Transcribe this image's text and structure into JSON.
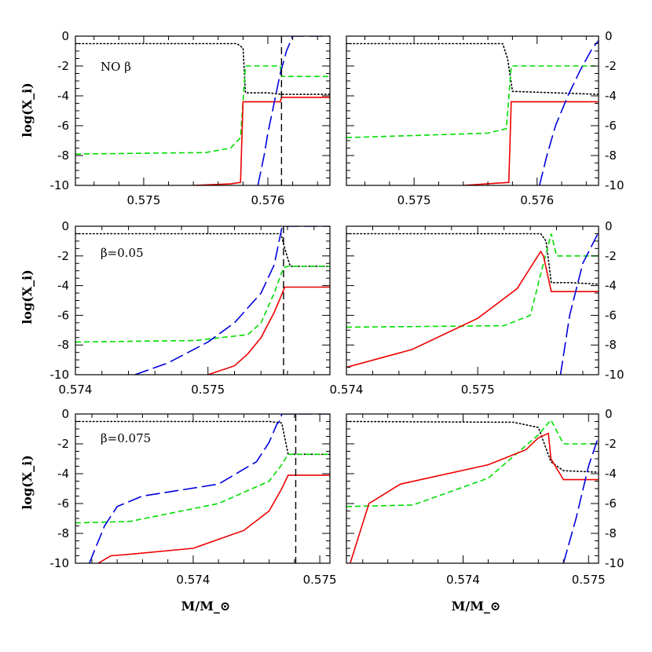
{
  "colors": {
    "H": "#000000",
    "He": "#0000dd",
    "C": "#00dd00",
    "O": "#ee0000",
    "interface": "#000000"
  },
  "y_axis_label": "log(X_i)",
  "x_axis_label": "M/M_⊙",
  "chart_data": [
    {
      "type": "line",
      "panel": "top-left",
      "annotation": "NO β",
      "xlim": [
        0.57445,
        0.5765
      ],
      "ylim": [
        -10,
        0
      ],
      "xticks": [
        0.575,
        0.576
      ],
      "xtick_labels": [
        "0.575",
        "0.576"
      ],
      "yticks": [
        0,
        -2,
        -4,
        -6,
        -8,
        -10
      ],
      "ytick_labels": [
        "0",
        "-2",
        "-4",
        "-6",
        "-8",
        "-10"
      ],
      "ytick_side": "left",
      "vline": 0.57611,
      "series": [
        {
          "key": "H",
          "style": "dotted",
          "x": [
            0.57445,
            0.57575,
            0.5758,
            0.57582,
            0.576,
            0.57611,
            0.5765
          ],
          "y": [
            -0.5,
            -0.5,
            -0.8,
            -3.8,
            -3.8,
            -3.9,
            -3.9
          ]
        },
        {
          "key": "C",
          "style": "dashed",
          "x": [
            0.57445,
            0.5755,
            0.5757,
            0.57578,
            0.57582,
            0.5761,
            0.57611,
            0.5765
          ],
          "y": [
            -7.9,
            -7.8,
            -7.5,
            -6.8,
            -2.0,
            -2.0,
            -2.7,
            -2.7
          ]
        },
        {
          "key": "O",
          "style": "solid",
          "x": [
            0.5754,
            0.5757,
            0.57578,
            0.5758,
            0.5761,
            0.57611,
            0.5765
          ],
          "y": [
            -10,
            -9.9,
            -9.8,
            -4.4,
            -4.4,
            -4.1,
            -4.1
          ]
        },
        {
          "key": "He",
          "style": "longdash",
          "x": [
            0.57592,
            0.57597,
            0.576,
            0.57605,
            0.5761,
            0.57615,
            0.5762,
            0.5765
          ],
          "y": [
            -10,
            -8.0,
            -6.5,
            -4.5,
            -2.5,
            -1.0,
            0,
            0
          ]
        }
      ]
    },
    {
      "type": "line",
      "panel": "top-right",
      "xlim": [
        0.57445,
        0.5765
      ],
      "ylim": [
        -10,
        0
      ],
      "xticks": [
        0.575,
        0.576
      ],
      "xtick_labels": [
        "0.575",
        "0.576"
      ],
      "yticks": [
        0,
        -2,
        -4,
        -6,
        -8,
        -10
      ],
      "ytick_labels": [
        "0",
        "-2",
        "-4",
        "-6",
        "-8",
        "-10"
      ],
      "ytick_side": "right",
      "series": [
        {
          "key": "H",
          "style": "dotted",
          "x": [
            0.57445,
            0.57572,
            0.57576,
            0.5758,
            0.5765
          ],
          "y": [
            -0.5,
            -0.5,
            -1.5,
            -3.7,
            -3.9
          ]
        },
        {
          "key": "C",
          "style": "dashed",
          "x": [
            0.57445,
            0.5756,
            0.57575,
            0.57579,
            0.5765
          ],
          "y": [
            -6.8,
            -6.5,
            -6.2,
            -2.0,
            -2.0
          ]
        },
        {
          "key": "O",
          "style": "solid",
          "x": [
            0.5754,
            0.57577,
            0.57579,
            0.5765
          ],
          "y": [
            -10,
            -9.8,
            -4.4,
            -4.4
          ]
        },
        {
          "key": "He",
          "style": "longdash",
          "x": [
            0.57602,
            0.57608,
            0.57615,
            0.57625,
            0.57635,
            0.57645,
            0.5765
          ],
          "y": [
            -10,
            -8.0,
            -6.0,
            -4.0,
            -2.3,
            -0.8,
            -0.3
          ]
        }
      ]
    },
    {
      "type": "line",
      "panel": "middle-left",
      "annotation": "β=0.05",
      "xlim": [
        0.574,
        0.57592
      ],
      "ylim": [
        -10,
        0
      ],
      "xticks": [
        0.574,
        0.575
      ],
      "xtick_labels": [
        "0.574",
        "0.575"
      ],
      "yticks": [
        0,
        -2,
        -4,
        -6,
        -8,
        -10
      ],
      "ytick_labels": [
        "0",
        "-2",
        "-4",
        "-6",
        "-8",
        "-10"
      ],
      "ytick_side": "left",
      "vline": 0.57557,
      "series": [
        {
          "key": "H",
          "style": "dotted",
          "x": [
            0.574,
            0.57555,
            0.57558,
            0.57562,
            0.57592
          ],
          "y": [
            -0.5,
            -0.5,
            -1.5,
            -2.7,
            -2.7
          ]
        },
        {
          "key": "C",
          "style": "dashed",
          "x": [
            0.574,
            0.5749,
            0.5753,
            0.5754,
            0.5755,
            0.57557,
            0.5756,
            0.57592
          ],
          "y": [
            -7.8,
            -7.7,
            -7.3,
            -6.5,
            -4.5,
            -2.8,
            -2.7,
            -2.7
          ]
        },
        {
          "key": "O",
          "style": "solid",
          "x": [
            0.575,
            0.5752,
            0.5753,
            0.5754,
            0.5755,
            0.57558,
            0.5756,
            0.57592
          ],
          "y": [
            -10,
            -9.4,
            -8.6,
            -7.5,
            -5.8,
            -4.1,
            -4.1,
            -4.1
          ]
        },
        {
          "key": "He",
          "style": "longdash",
          "x": [
            0.57445,
            0.5747,
            0.575,
            0.5752,
            0.5754,
            0.5755,
            0.57556,
            0.5756,
            0.57592
          ],
          "y": [
            -10,
            -9.2,
            -7.8,
            -6.5,
            -4.5,
            -2.6,
            0,
            0,
            0
          ]
        }
      ]
    },
    {
      "type": "line",
      "panel": "middle-right",
      "xlim": [
        0.574,
        0.57592
      ],
      "ylim": [
        -10,
        0
      ],
      "xticks": [
        0.574,
        0.575
      ],
      "xtick_labels": [
        "0.574",
        "0.575"
      ],
      "yticks": [
        0,
        -2,
        -4,
        -6,
        -8,
        -10
      ],
      "ytick_labels": [
        "0",
        "-2",
        "-4",
        "-6",
        "-8",
        "-10"
      ],
      "ytick_side": "right",
      "series": [
        {
          "key": "H",
          "style": "dotted",
          "x": [
            0.574,
            0.57548,
            0.57552,
            0.57556,
            0.5757,
            0.57592
          ],
          "y": [
            -0.5,
            -0.5,
            -1.0,
            -3.8,
            -3.8,
            -3.9
          ]
        },
        {
          "key": "C",
          "style": "dashed",
          "x": [
            0.574,
            0.5752,
            0.5754,
            0.5755,
            0.57556,
            0.5756,
            0.57592
          ],
          "y": [
            -6.8,
            -6.7,
            -6.0,
            -2.5,
            -0.5,
            -2.0,
            -2.0
          ]
        },
        {
          "key": "O",
          "style": "solid",
          "x": [
            0.574,
            0.5745,
            0.575,
            0.5753,
            0.5754,
            0.57548,
            0.5755,
            0.57556,
            0.57592
          ],
          "y": [
            -9.5,
            -8.3,
            -6.2,
            -4.2,
            -2.8,
            -1.7,
            -2.0,
            -4.4,
            -4.4
          ]
        },
        {
          "key": "He",
          "style": "longdash",
          "x": [
            0.57563,
            0.5757,
            0.5758,
            0.57592
          ],
          "y": [
            -10,
            -6.0,
            -2.5,
            -0.4
          ]
        }
      ]
    },
    {
      "type": "line",
      "panel": "bottom-left",
      "annotation": "β=0.075",
      "xlim": [
        0.57307,
        0.57508
      ],
      "ylim": [
        -10,
        0
      ],
      "xticks": [
        0.574,
        0.575
      ],
      "xtick_labels": [
        "0.574",
        "0.575"
      ],
      "yticks": [
        0,
        -2,
        -4,
        -6,
        -8,
        -10
      ],
      "ytick_labels": [
        "0",
        "-2",
        "-4",
        "-6",
        "-8",
        "-10"
      ],
      "ytick_side": "left",
      "vline": 0.57481,
      "series": [
        {
          "key": "H",
          "style": "dotted",
          "x": [
            0.57307,
            0.5746,
            0.5747,
            0.57475,
            0.57508
          ],
          "y": [
            -0.5,
            -0.5,
            -0.6,
            -2.7,
            -2.7
          ]
        },
        {
          "key": "C",
          "style": "dashed",
          "x": [
            0.57307,
            0.5735,
            0.5742,
            0.5746,
            0.5747,
            0.57475,
            0.57508
          ],
          "y": [
            -7.3,
            -7.2,
            -6.0,
            -4.5,
            -3.4,
            -2.7,
            -2.7
          ]
        },
        {
          "key": "O",
          "style": "solid",
          "x": [
            0.57325,
            0.57335,
            0.5735,
            0.574,
            0.5744,
            0.5746,
            0.5747,
            0.57475,
            0.57508
          ],
          "y": [
            -10,
            -9.5,
            -9.4,
            -9.0,
            -7.8,
            -6.5,
            -5.0,
            -4.1,
            -4.1
          ]
        },
        {
          "key": "He",
          "style": "longdash",
          "x": [
            0.57318,
            0.5733,
            0.5734,
            0.5736,
            0.5742,
            0.5745,
            0.5746,
            0.57466,
            0.57469,
            0.5747,
            0.57508
          ],
          "y": [
            -10,
            -7.5,
            -6.2,
            -5.5,
            -4.7,
            -3.2,
            -1.9,
            -0.7,
            -0.4,
            0,
            0
          ]
        }
      ]
    },
    {
      "type": "line",
      "panel": "bottom-right",
      "xlim": [
        0.57307,
        0.57508
      ],
      "ylim": [
        -10,
        0
      ],
      "xticks": [
        0.574,
        0.575
      ],
      "xtick_labels": [
        "0.574",
        "0.575"
      ],
      "yticks": [
        0,
        -2,
        -4,
        -6,
        -8,
        -10
      ],
      "ytick_labels": [
        "0",
        "-2",
        "-4",
        "-6",
        "-8",
        "-10"
      ],
      "ytick_side": "right",
      "series": [
        {
          "key": "H",
          "style": "dotted",
          "x": [
            0.57307,
            0.5744,
            0.5746,
            0.5747,
            0.5748,
            0.57508
          ],
          "y": [
            -0.5,
            -0.55,
            -0.9,
            -3.2,
            -3.8,
            -3.9
          ]
        },
        {
          "key": "C",
          "style": "dashed",
          "x": [
            0.57307,
            0.5736,
            0.5742,
            0.5746,
            0.5747,
            0.5748,
            0.57508
          ],
          "y": [
            -6.2,
            -6.1,
            -4.3,
            -1.4,
            -0.4,
            -2.0,
            -2.0
          ]
        },
        {
          "key": "O",
          "style": "solid",
          "x": [
            0.5731,
            0.57325,
            0.5735,
            0.5742,
            0.5745,
            0.5746,
            0.57468,
            0.5747,
            0.5748,
            0.57508
          ],
          "y": [
            -10,
            -6.0,
            -4.7,
            -3.4,
            -2.4,
            -1.6,
            -1.3,
            -3.0,
            -4.4,
            -4.4
          ]
        },
        {
          "key": "He",
          "style": "longdash",
          "x": [
            0.5748,
            0.5749,
            0.575,
            0.57508
          ],
          "y": [
            -10,
            -7.0,
            -3.5,
            -1.5
          ]
        }
      ]
    }
  ]
}
